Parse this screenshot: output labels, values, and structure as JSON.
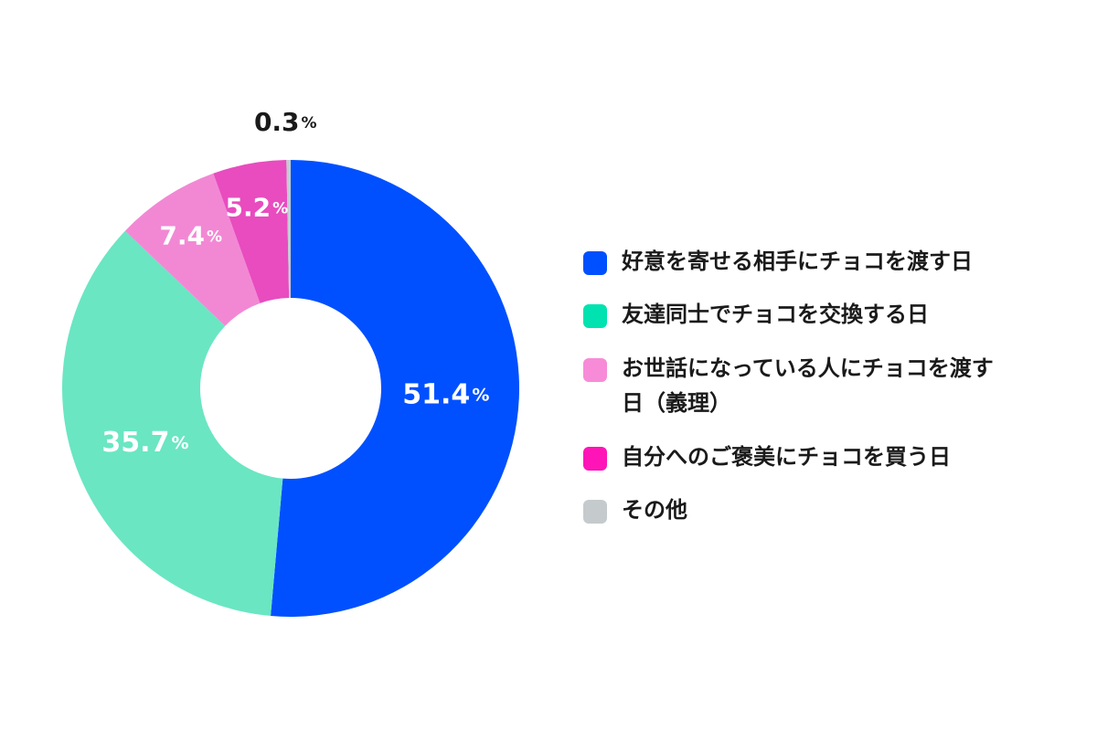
{
  "chart_data": {
    "type": "pie",
    "donut": true,
    "unit": "%",
    "slices": [
      {
        "label": "好意を寄せる相手にチョコを渡す日",
        "value": 51.4,
        "value_text": "51.4",
        "color": "#0050ff"
      },
      {
        "label": "友達同士でチョコを交換する日",
        "value": 35.7,
        "value_text": "35.7",
        "color": "#6ae6c2"
      },
      {
        "label": "お世話になっている人にチョコを渡す日（義理）",
        "value": 7.4,
        "value_text": "7.4",
        "color": "#f288d4"
      },
      {
        "label": "自分へのご褒美にチョコを買う日",
        "value": 5.2,
        "value_text": "5.2",
        "color": "#e84cbf"
      },
      {
        "label": "その他",
        "value": 0.3,
        "value_text": "0.3",
        "color": "#c5cbcd"
      }
    ],
    "legend_placement": "right",
    "start_angle": "top",
    "direction": "clockwise"
  },
  "legend": {
    "items": [
      {
        "label": "好意を寄せる相手にチョコを渡す日",
        "color": "#0050ff"
      },
      {
        "label": "友達同士でチョコを交換する日",
        "color": "#00e3b0"
      },
      {
        "label": "お世話になっている人にチョコを渡す日（義理）",
        "color": "#f78bd7"
      },
      {
        "label": "自分へのご褒美にチョコを買う日",
        "color": "#ff14b8"
      },
      {
        "label": "その他",
        "color": "#c5cbcd"
      }
    ]
  }
}
